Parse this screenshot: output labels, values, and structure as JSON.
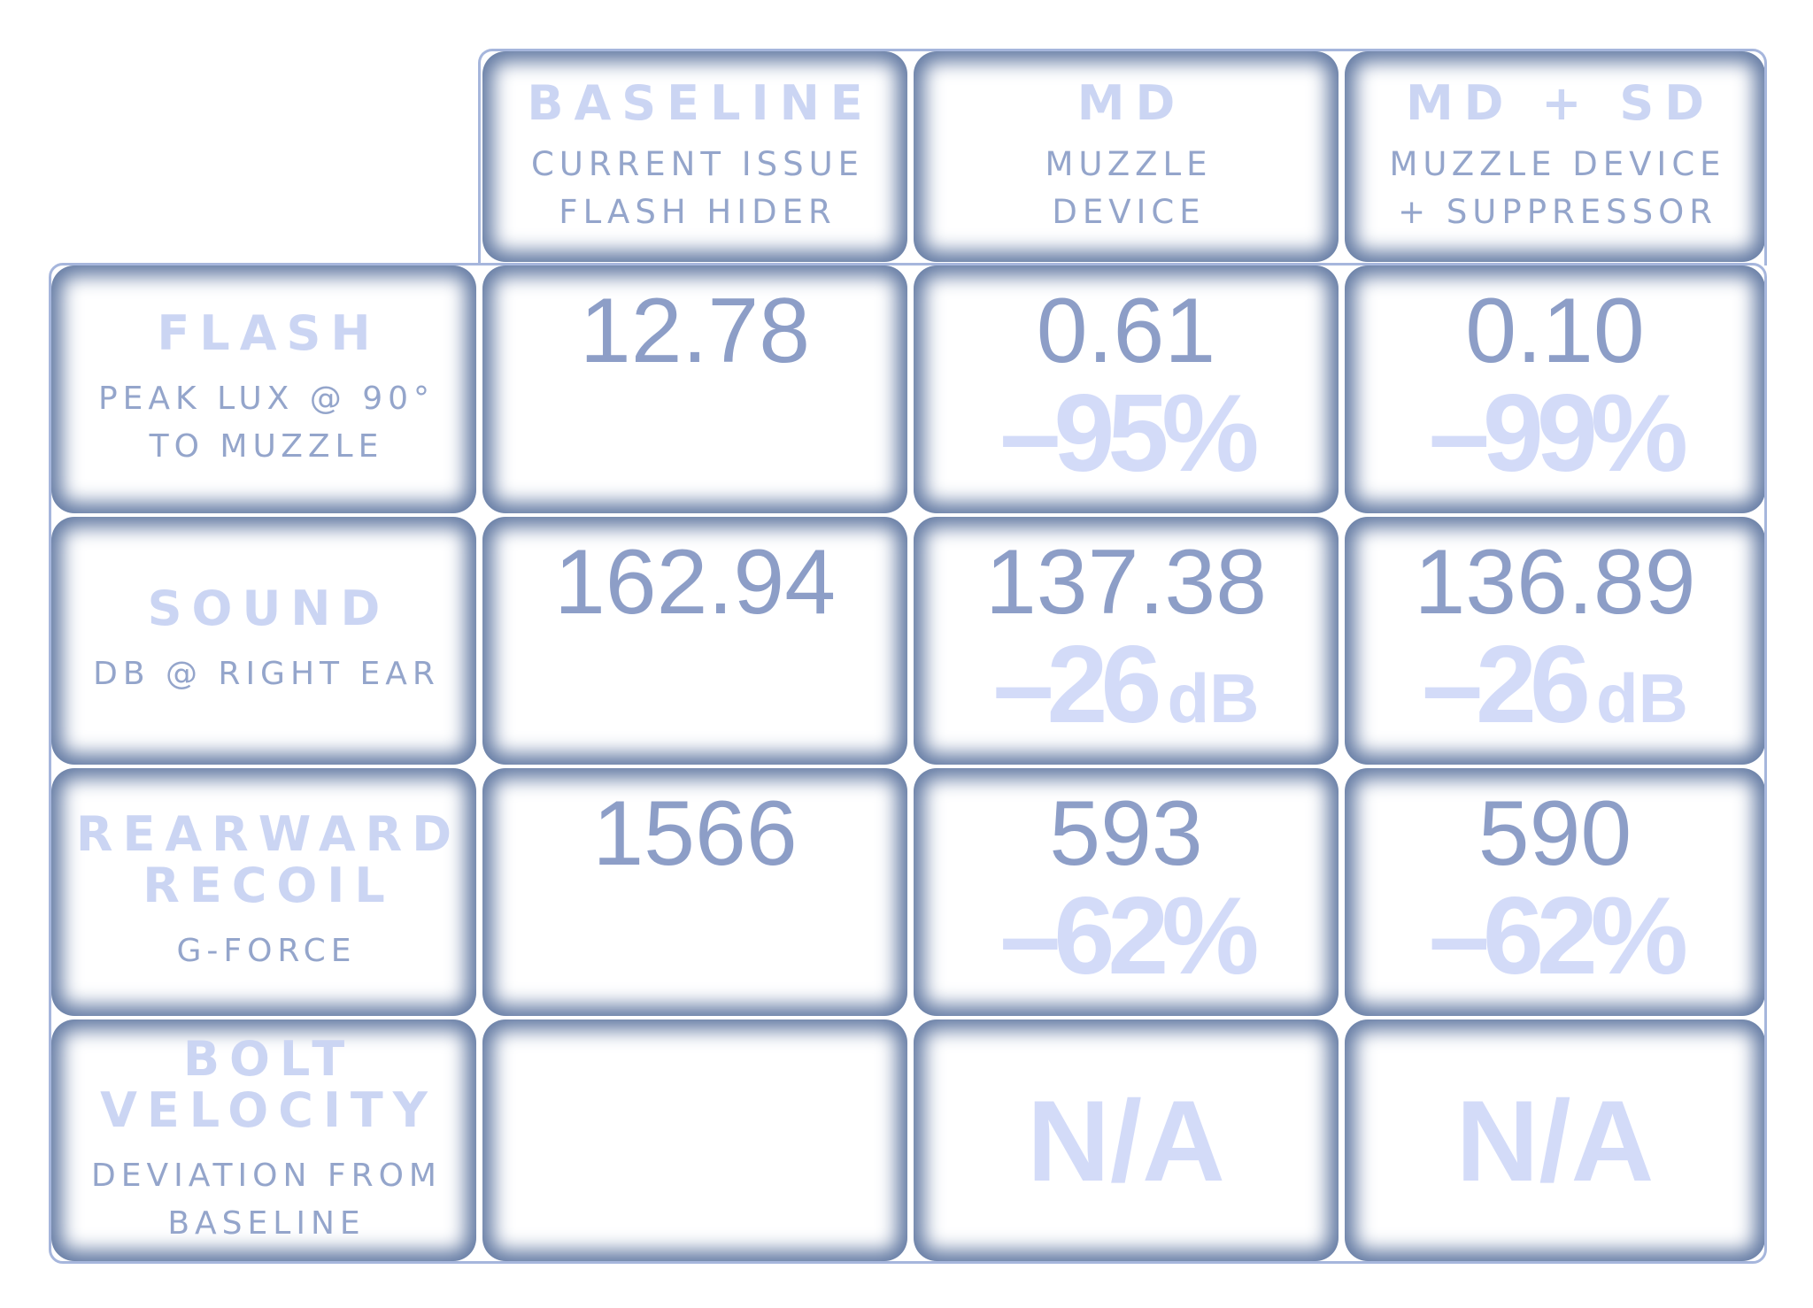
{
  "columns": [
    {
      "title": "BASELINE",
      "sub1": "CURRENT ISSUE",
      "sub2": "FLASH HIDER"
    },
    {
      "title": "MD",
      "sub1": "MUZZLE",
      "sub2": "DEVICE"
    },
    {
      "title": "MD + SD",
      "sub1": "MUZZLE DEVICE",
      "sub2": "+ SUPPRESSOR"
    }
  ],
  "rows": [
    {
      "label": {
        "title1": "FLASH",
        "title2": "",
        "sub1": "PEAK LUX @ 90°",
        "sub2": "TO MUZZLE"
      },
      "cells": [
        {
          "value": "12.78",
          "delta": "",
          "unit": ""
        },
        {
          "value": "0.61",
          "delta": "–95%",
          "unit": ""
        },
        {
          "value": "0.10",
          "delta": "–99%",
          "unit": ""
        }
      ]
    },
    {
      "label": {
        "title1": "SOUND",
        "title2": "",
        "sub1": "DB @ RIGHT EAR",
        "sub2": ""
      },
      "cells": [
        {
          "value": "162.94",
          "delta": "",
          "unit": ""
        },
        {
          "value": "137.38",
          "delta": "–26",
          "unit": "dB"
        },
        {
          "value": "136.89",
          "delta": "–26",
          "unit": "dB"
        }
      ]
    },
    {
      "label": {
        "title1": "REARWARD",
        "title2": "RECOIL",
        "sub1": "G-FORCE",
        "sub2": ""
      },
      "cells": [
        {
          "value": "1566",
          "delta": "",
          "unit": ""
        },
        {
          "value": "593",
          "delta": "–62%",
          "unit": ""
        },
        {
          "value": "590",
          "delta": "–62%",
          "unit": ""
        }
      ]
    },
    {
      "label": {
        "title1": "BOLT",
        "title2": "VELOCITY",
        "sub1": "DEVIATION FROM",
        "sub2": "BASELINE"
      },
      "cells": [
        {
          "value": "",
          "delta": "",
          "unit": ""
        },
        {
          "na": "N/A"
        },
        {
          "na": "N/A"
        }
      ]
    }
  ],
  "colors": {
    "frame_shadow": "#637aa3",
    "frame_line": "#a6b6dc",
    "title_text": "#cbd5f3",
    "subtitle_text": "#94a5cb",
    "value_text": "#8d9ec7",
    "delta_text": "#d3dbf8"
  }
}
